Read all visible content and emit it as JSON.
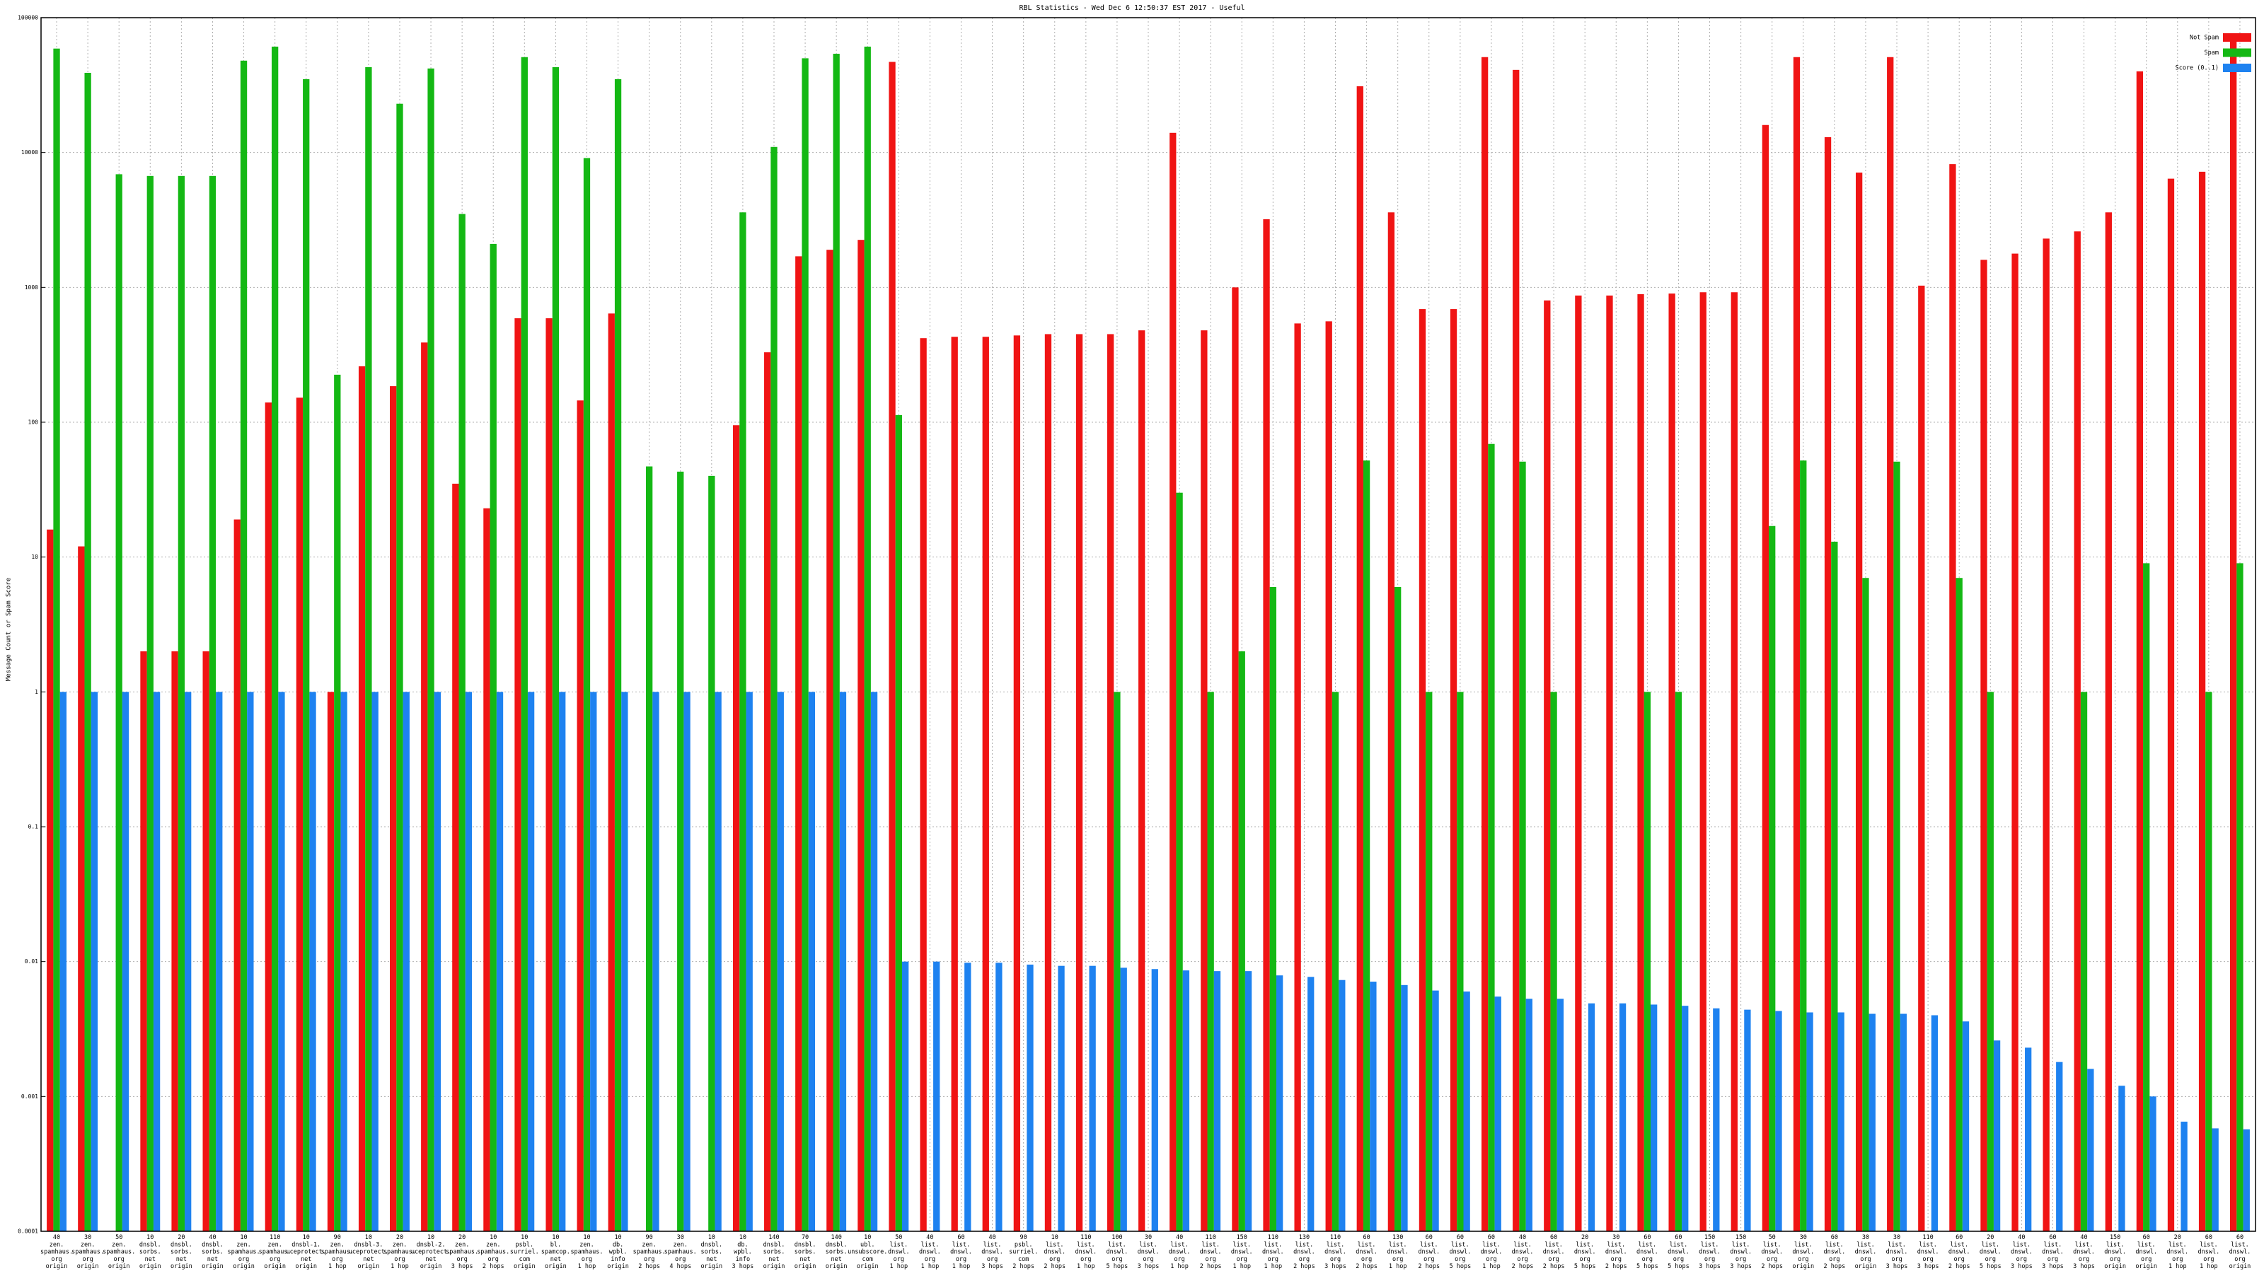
{
  "chart_data": {
    "type": "bar",
    "title": "RBL Statistics - Wed Dec  6 12:50:37 EST 2017 - Useful",
    "y_label": "Message Count or Spam Score",
    "log_y": true,
    "grid": true,
    "legend": "top-right",
    "ylim": [
      0.0001,
      100000
    ],
    "yticks": [
      0.0001,
      0.001,
      0.01,
      0.1,
      1,
      10,
      100,
      1000,
      10000,
      100000
    ],
    "categories": [
      [
        "40",
        "zen.",
        "spamhaus.",
        "org",
        "origin"
      ],
      [
        "30",
        "zen.",
        "spamhaus.",
        "org",
        "origin"
      ],
      [
        "50",
        "zen.",
        "spamhaus.",
        "org",
        "origin"
      ],
      [
        "10",
        "dnsbl.",
        "sorbs.",
        "net",
        "origin"
      ],
      [
        "20",
        "dnsbl.",
        "sorbs.",
        "net",
        "origin"
      ],
      [
        "40",
        "dnsbl.",
        "sorbs.",
        "net",
        "origin"
      ],
      [
        "10",
        "zen.",
        "spamhaus.",
        "org",
        "origin"
      ],
      [
        "110",
        "zen.",
        "spamhaus.",
        "org",
        "origin"
      ],
      [
        "10",
        "dnsbl-1.",
        "uceprotect.",
        "net",
        "origin"
      ],
      [
        "90",
        "zen.",
        "spamhaus.",
        "org",
        "1 hop"
      ],
      [
        "10",
        "dnsbl-3.",
        "uceprotect.",
        "net",
        "origin"
      ],
      [
        "20",
        "zen.",
        "spamhaus.",
        "org",
        "1 hop"
      ],
      [
        "10",
        "dnsbl-2.",
        "uceprotect.",
        "net",
        "origin"
      ],
      [
        "20",
        "zen.",
        "spamhaus.",
        "org",
        "3 hops"
      ],
      [
        "10",
        "zen.",
        "spamhaus.",
        "org",
        "2 hops"
      ],
      [
        "10",
        "psbl.",
        "surriel.",
        "com",
        "origin"
      ],
      [
        "10",
        "bl.",
        "spamcop.",
        "net",
        "origin"
      ],
      [
        "10",
        "zen.",
        "spamhaus.",
        "org",
        "1 hop"
      ],
      [
        "10",
        "db.",
        "wpbl.",
        "info",
        "origin"
      ],
      [
        "90",
        "zen.",
        "spamhaus.",
        "org",
        "2 hops"
      ],
      [
        "30",
        "zen.",
        "spamhaus.",
        "org",
        "4 hops"
      ],
      [
        "10",
        "dnsbl.",
        "sorbs.",
        "net",
        "origin"
      ],
      [
        "10",
        "db.",
        "wpbl.",
        "info",
        "3 hops"
      ],
      [
        "140",
        "dnsbl.",
        "sorbs.",
        "net",
        "origin"
      ],
      [
        "70",
        "dnsbl.",
        "sorbs.",
        "net",
        "origin"
      ],
      [
        "140",
        "dnsbl.",
        "sorbs.",
        "net",
        "origin"
      ],
      [
        "10",
        "ubl.",
        "unsubscore.",
        "com",
        "origin"
      ],
      [
        "50",
        "list.",
        "dnswl.",
        "org",
        "1 hop"
      ],
      [
        "40",
        "list.",
        "dnswl.",
        "org",
        "1 hop"
      ],
      [
        "60",
        "list.",
        "dnswl.",
        "org",
        "1 hop"
      ],
      [
        "40",
        "list.",
        "dnswl.",
        "org",
        "3 hops"
      ],
      [
        "90",
        "psbl.",
        "surriel.",
        "com",
        "2 hops"
      ],
      [
        "10",
        "list.",
        "dnswl.",
        "org",
        "2 hops"
      ],
      [
        "110",
        "list.",
        "dnswl.",
        "org",
        "1 hop"
      ],
      [
        "100",
        "list.",
        "dnswl.",
        "org",
        "5 hops"
      ],
      [
        "30",
        "list.",
        "dnswl.",
        "org",
        "3 hops"
      ],
      [
        "40",
        "list.",
        "dnswl.",
        "org",
        "1 hop"
      ],
      [
        "110",
        "list.",
        "dnswl.",
        "org",
        "2 hops"
      ],
      [
        "150",
        "list.",
        "dnswl.",
        "org",
        "1 hop"
      ],
      [
        "110",
        "list.",
        "dnswl.",
        "org",
        "1 hop"
      ],
      [
        "130",
        "list.",
        "dnswl.",
        "org",
        "2 hops"
      ],
      [
        "110",
        "list.",
        "dnswl.",
        "org",
        "3 hops"
      ],
      [
        "60",
        "list.",
        "dnswl.",
        "org",
        "2 hops"
      ],
      [
        "130",
        "list.",
        "dnswl.",
        "org",
        "1 hop"
      ],
      [
        "60",
        "list.",
        "dnswl.",
        "org",
        "2 hops"
      ],
      [
        "60",
        "list.",
        "dnswl.",
        "org",
        "5 hops"
      ],
      [
        "60",
        "list.",
        "dnswl.",
        "org",
        "1 hop"
      ],
      [
        "40",
        "list.",
        "dnswl.",
        "org",
        "2 hops"
      ],
      [
        "60",
        "list.",
        "dnswl.",
        "org",
        "2 hops"
      ],
      [
        "20",
        "list.",
        "dnswl.",
        "org",
        "5 hops"
      ],
      [
        "30",
        "list.",
        "dnswl.",
        "org",
        "2 hops"
      ],
      [
        "60",
        "list.",
        "dnswl.",
        "org",
        "5 hops"
      ],
      [
        "60",
        "list.",
        "dnswl.",
        "org",
        "5 hops"
      ],
      [
        "150",
        "list.",
        "dnswl.",
        "org",
        "3 hops"
      ],
      [
        "150",
        "list.",
        "dnswl.",
        "org",
        "3 hops"
      ],
      [
        "50",
        "list.",
        "dnswl.",
        "org",
        "2 hops"
      ],
      [
        "30",
        "list.",
        "dnswl.",
        "org",
        "origin"
      ],
      [
        "60",
        "list.",
        "dnswl.",
        "org",
        "2 hops"
      ],
      [
        "30",
        "list.",
        "dnswl.",
        "org",
        "origin"
      ],
      [
        "30",
        "list.",
        "dnswl.",
        "org",
        "3 hops"
      ],
      [
        "110",
        "list.",
        "dnswl.",
        "org",
        "3 hops"
      ],
      [
        "60",
        "list.",
        "dnswl.",
        "org",
        "2 hops"
      ],
      [
        "20",
        "list.",
        "dnswl.",
        "org",
        "5 hops"
      ],
      [
        "40",
        "list.",
        "dnswl.",
        "org",
        "3 hops"
      ],
      [
        "60",
        "list.",
        "dnswl.",
        "org",
        "3 hops"
      ],
      [
        "40",
        "list.",
        "dnswl.",
        "org",
        "3 hops"
      ],
      [
        "150",
        "list.",
        "dnswl.",
        "org",
        "origin"
      ],
      [
        "60",
        "list.",
        "dnswl.",
        "org",
        "origin"
      ],
      [
        "20",
        "list.",
        "dnswl.",
        "org",
        "1 hop"
      ],
      [
        "60",
        "list.",
        "dnswl.",
        "org",
        "1 hop"
      ],
      [
        "60",
        "list.",
        "dnswl.",
        "org",
        "origin"
      ]
    ],
    "series": [
      {
        "name": "Not Spam",
        "color": "#f01414",
        "values": [
          16,
          12,
          null,
          2,
          2,
          2,
          19,
          140,
          152,
          1,
          260,
          185,
          390,
          35,
          23,
          590,
          590,
          145,
          640,
          null,
          null,
          null,
          95,
          330,
          1700,
          1900,
          2250,
          47000,
          420,
          430,
          430,
          440,
          450,
          450,
          450,
          480,
          14000,
          480,
          1000,
          3200,
          540,
          560,
          31000,
          3600,
          690,
          690,
          51000,
          41000,
          800,
          870,
          870,
          890,
          900,
          920,
          920,
          16000,
          51000,
          13000,
          7100,
          51000,
          1030,
          8200,
          1600,
          1780,
          2300,
          2600,
          3600,
          40000,
          6400,
          7200,
          75000
        ]
      },
      {
        "name": "Spam",
        "color": "#14b814",
        "values": [
          59000,
          39000,
          6900,
          6700,
          6700,
          6700,
          48000,
          61000,
          35000,
          225,
          43000,
          23000,
          42000,
          3500,
          2100,
          51000,
          43000,
          9100,
          35000,
          47,
          43,
          40,
          3600,
          11000,
          50000,
          54000,
          61000,
          113,
          null,
          null,
          null,
          null,
          null,
          null,
          1,
          null,
          30,
          1,
          2,
          6,
          null,
          1,
          52,
          6,
          1,
          1,
          69,
          51,
          1,
          null,
          null,
          1,
          1,
          null,
          null,
          17,
          52,
          13,
          7,
          51,
          null,
          7,
          1,
          null,
          null,
          1,
          null,
          9,
          null,
          1,
          9
        ]
      },
      {
        "name": "Score (0..1)",
        "color": "#1e82f0",
        "values": [
          1,
          1,
          1,
          1,
          1,
          1,
          1,
          1,
          1,
          1,
          1,
          1,
          1,
          1,
          1,
          1,
          1,
          1,
          1,
          1,
          1,
          1,
          1,
          1,
          1,
          1,
          1,
          0.01,
          0.01,
          0.0098,
          0.0098,
          0.0095,
          0.0093,
          0.0093,
          0.009,
          0.0088,
          0.0086,
          0.0085,
          0.0085,
          0.0079,
          0.0077,
          0.0073,
          0.0071,
          0.0067,
          0.0061,
          0.006,
          0.0055,
          0.0053,
          0.0053,
          0.0049,
          0.0049,
          0.0048,
          0.0047,
          0.0045,
          0.0044,
          0.0043,
          0.0042,
          0.0042,
          0.0041,
          0.0041,
          0.004,
          0.0036,
          0.0026,
          0.0023,
          0.0018,
          0.0016,
          0.0012,
          0.001,
          0.00065,
          0.00058,
          0.00057
        ]
      }
    ]
  }
}
